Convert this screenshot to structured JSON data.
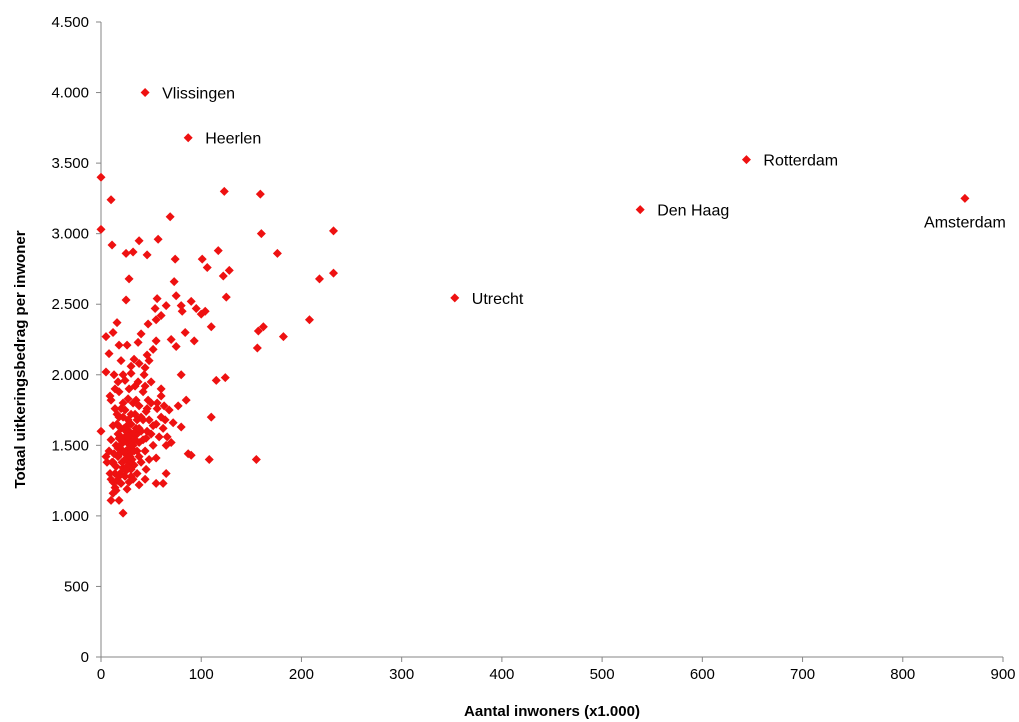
{
  "chart_data": {
    "type": "scatter",
    "title": "",
    "xlabel": "Aantal inwoners (x1.000)",
    "ylabel": "Totaal uitkeringsbedrag per inwoner",
    "xlim": [
      0,
      900
    ],
    "ylim": [
      0,
      4500
    ],
    "xticks": [
      0,
      100,
      200,
      300,
      400,
      500,
      600,
      700,
      800,
      900
    ],
    "yticks": [
      0,
      500,
      1000,
      1500,
      2000,
      2500,
      3000,
      3500,
      4000,
      4500
    ],
    "xtick_labels": [
      "0",
      "100",
      "200",
      "300",
      "400",
      "500",
      "600",
      "700",
      "800",
      "900"
    ],
    "ytick_labels": [
      "0",
      "500",
      "1.000",
      "1.500",
      "2.000",
      "2.500",
      "3.000",
      "3.500",
      "4.000",
      "4.500"
    ],
    "grid": false,
    "legend": "none",
    "marker_color": "#ee1111",
    "marker": "diamond",
    "labeled_points": [
      {
        "label": "Vlissingen",
        "x": 44,
        "y": 4000,
        "label_side": "right"
      },
      {
        "label": "Heerlen",
        "x": 87,
        "y": 3680,
        "label_side": "right"
      },
      {
        "label": "Rotterdam",
        "x": 644,
        "y": 3525,
        "label_side": "right"
      },
      {
        "label": "Amsterdam",
        "x": 862,
        "y": 3250,
        "label_side": "below"
      },
      {
        "label": "Den Haag",
        "x": 538,
        "y": 3170,
        "label_side": "right"
      },
      {
        "label": "Utrecht",
        "x": 353,
        "y": 2545,
        "label_side": "right"
      }
    ],
    "points": [
      [
        0,
        3400
      ],
      [
        10,
        3240
      ],
      [
        0,
        3030
      ],
      [
        11,
        2920
      ],
      [
        123,
        3300
      ],
      [
        159,
        3280
      ],
      [
        69,
        3120
      ],
      [
        160,
        3000
      ],
      [
        232,
        3020
      ],
      [
        38,
        2950
      ],
      [
        57,
        2960
      ],
      [
        32,
        2870
      ],
      [
        25,
        2860
      ],
      [
        46,
        2850
      ],
      [
        117,
        2880
      ],
      [
        176,
        2860
      ],
      [
        101,
        2820
      ],
      [
        74,
        2820
      ],
      [
        106,
        2760
      ],
      [
        128,
        2740
      ],
      [
        232,
        2720
      ],
      [
        218,
        2680
      ],
      [
        122,
        2700
      ],
      [
        28,
        2680
      ],
      [
        73,
        2660
      ],
      [
        75,
        2560
      ],
      [
        125,
        2550
      ],
      [
        56,
        2540
      ],
      [
        25,
        2530
      ],
      [
        90,
        2520
      ],
      [
        65,
        2490
      ],
      [
        80,
        2490
      ],
      [
        54,
        2470
      ],
      [
        95,
        2470
      ],
      [
        104,
        2450
      ],
      [
        81,
        2450
      ],
      [
        100,
        2430
      ],
      [
        60,
        2420
      ],
      [
        55,
        2390
      ],
      [
        16,
        2370
      ],
      [
        47,
        2360
      ],
      [
        208,
        2390
      ],
      [
        110,
        2340
      ],
      [
        162,
        2340
      ],
      [
        157,
        2310
      ],
      [
        12,
        2300
      ],
      [
        84,
        2300
      ],
      [
        5,
        2270
      ],
      [
        40,
        2290
      ],
      [
        182,
        2270
      ],
      [
        70,
        2250
      ],
      [
        55,
        2240
      ],
      [
        37,
        2230
      ],
      [
        93,
        2240
      ],
      [
        26,
        2210
      ],
      [
        18,
        2210
      ],
      [
        75,
        2200
      ],
      [
        156,
        2190
      ],
      [
        8,
        2150
      ],
      [
        46,
        2140
      ],
      [
        33,
        2110
      ],
      [
        20,
        2100
      ],
      [
        5,
        2020
      ],
      [
        13,
        2000
      ],
      [
        30,
        2010
      ],
      [
        43,
        2000
      ],
      [
        80,
        2000
      ],
      [
        115,
        1960
      ],
      [
        124,
        1980
      ],
      [
        17,
        1950
      ],
      [
        37,
        1950
      ],
      [
        9,
        1850
      ],
      [
        27,
        1830
      ],
      [
        60,
        1850
      ],
      [
        85,
        1820
      ],
      [
        47,
        1820
      ],
      [
        38,
        1780
      ],
      [
        63,
        1780
      ],
      [
        77,
        1780
      ],
      [
        110,
        1700
      ],
      [
        80,
        1630
      ],
      [
        55,
        1650
      ],
      [
        28,
        1600
      ],
      [
        0,
        1600
      ],
      [
        45,
        1550
      ],
      [
        36,
        1580
      ],
      [
        20,
        1560
      ],
      [
        65,
        1500
      ],
      [
        17,
        1480
      ],
      [
        25,
        1460
      ],
      [
        5,
        1420
      ],
      [
        38,
        1420
      ],
      [
        55,
        1410
      ],
      [
        87,
        1440
      ],
      [
        108,
        1400
      ],
      [
        155,
        1400
      ],
      [
        90,
        1430
      ],
      [
        12,
        1380
      ],
      [
        22,
        1340
      ],
      [
        45,
        1330
      ],
      [
        65,
        1300
      ],
      [
        30,
        1280
      ],
      [
        10,
        1260
      ],
      [
        38,
        1220
      ],
      [
        55,
        1230
      ],
      [
        62,
        1230
      ],
      [
        14,
        1200
      ],
      [
        26,
        1190
      ],
      [
        12,
        1160
      ],
      [
        18,
        1110
      ],
      [
        10,
        1110
      ],
      [
        22,
        1020
      ],
      [
        15,
        1500
      ],
      [
        18,
        1550
      ],
      [
        20,
        1620
      ],
      [
        22,
        1700
      ],
      [
        24,
        1750
      ],
      [
        26,
        1520
      ],
      [
        28,
        1480
      ],
      [
        30,
        1650
      ],
      [
        32,
        1580
      ],
      [
        34,
        1720
      ],
      [
        15,
        1350
      ],
      [
        17,
        1420
      ],
      [
        19,
        1300
      ],
      [
        21,
        1380
      ],
      [
        23,
        1450
      ],
      [
        25,
        1600
      ],
      [
        27,
        1680
      ],
      [
        29,
        1540
      ],
      [
        31,
        1400
      ],
      [
        33,
        1360
      ],
      [
        16,
        1650
      ],
      [
        18,
        1700
      ],
      [
        20,
        1760
      ],
      [
        22,
        1800
      ],
      [
        24,
        1560
      ],
      [
        26,
        1440
      ],
      [
        28,
        1380
      ],
      [
        30,
        1330
      ],
      [
        32,
        1500
      ],
      [
        35,
        1620
      ],
      [
        40,
        1700
      ],
      [
        42,
        1540
      ],
      [
        44,
        1460
      ],
      [
        48,
        1400
      ],
      [
        50,
        1580
      ],
      [
        52,
        1640
      ],
      [
        45,
        1740
      ],
      [
        50,
        1800
      ],
      [
        35,
        1820
      ],
      [
        14,
        1760
      ],
      [
        12,
        1640
      ],
      [
        10,
        1540
      ],
      [
        8,
        1460
      ],
      [
        6,
        1380
      ],
      [
        14,
        1300
      ],
      [
        16,
        1250
      ],
      [
        20,
        1230
      ],
      [
        24,
        1280
      ],
      [
        28,
        1340
      ],
      [
        36,
        1460
      ],
      [
        38,
        1520
      ],
      [
        40,
        1600
      ],
      [
        42,
        1680
      ],
      [
        46,
        1600
      ],
      [
        48,
        1680
      ],
      [
        52,
        1500
      ],
      [
        58,
        1560
      ],
      [
        60,
        1700
      ],
      [
        62,
        1620
      ],
      [
        66,
        1560
      ],
      [
        70,
        1520
      ],
      [
        72,
        1660
      ],
      [
        34,
        1920
      ],
      [
        28,
        1900
      ],
      [
        24,
        1960
      ],
      [
        30,
        2060
      ],
      [
        38,
        2080
      ],
      [
        42,
        1880
      ],
      [
        44,
        2050
      ],
      [
        48,
        2100
      ],
      [
        50,
        1950
      ],
      [
        52,
        2180
      ],
      [
        22,
        2000
      ],
      [
        18,
        1880
      ],
      [
        14,
        1900
      ],
      [
        10,
        1820
      ],
      [
        16,
        1720
      ],
      [
        20,
        1450
      ],
      [
        22,
        1520
      ],
      [
        24,
        1400
      ],
      [
        26,
        1350
      ],
      [
        18,
        1280
      ],
      [
        28,
        1240
      ],
      [
        32,
        1260
      ],
      [
        36,
        1300
      ],
      [
        40,
        1380
      ],
      [
        44,
        1260
      ],
      [
        22,
        1460
      ],
      [
        26,
        1640
      ],
      [
        30,
        1720
      ],
      [
        32,
        1800
      ],
      [
        34,
        1540
      ],
      [
        36,
        1680
      ],
      [
        38,
        1620
      ],
      [
        30,
        1450
      ],
      [
        27,
        1560
      ],
      [
        23,
        1620
      ],
      [
        19,
        1500
      ],
      [
        17,
        1580
      ],
      [
        13,
        1440
      ],
      [
        11,
        1380
      ],
      [
        9,
        1300
      ],
      [
        15,
        1180
      ],
      [
        12,
        1240
      ],
      [
        25,
        1320
      ],
      [
        29,
        1420
      ],
      [
        33,
        1460
      ],
      [
        46,
        1760
      ],
      [
        56,
        1760
      ],
      [
        60,
        1900
      ],
      [
        64,
        1680
      ],
      [
        68,
        1750
      ],
      [
        44,
        1920
      ],
      [
        56,
        1800
      ]
    ]
  }
}
